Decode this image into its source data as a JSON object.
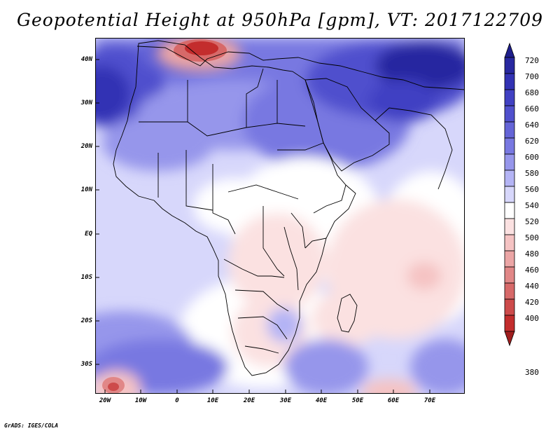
{
  "title": "Geopotential Height at 950hPa [gpm], VT: 2017122709",
  "credit": "GrADS: IGES/COLA",
  "axes": {
    "lat_ticks": [
      "40N",
      "30N",
      "20N",
      "10N",
      "EQ",
      "10S",
      "20S",
      "30S"
    ],
    "lon_ticks": [
      "20W",
      "10W",
      "0",
      "10E",
      "20E",
      "30E",
      "40E",
      "50E",
      "60E",
      "70E"
    ]
  },
  "colorbar": {
    "levels": [
      "720",
      "700",
      "680",
      "660",
      "640",
      "620",
      "600",
      "580",
      "560",
      "540",
      "520",
      "500",
      "480",
      "460",
      "440",
      "420",
      "400",
      "380"
    ],
    "colors": [
      "#1e1e8c",
      "#2828a0",
      "#3232b4",
      "#4141c3",
      "#5050cd",
      "#6464d7",
      "#7878e1",
      "#9696eb",
      "#b4b4f5",
      "#d7d7fb",
      "#ffffff",
      "#fbe1e1",
      "#f5c3c3",
      "#eba5a5",
      "#e18787",
      "#d76969",
      "#cd4b4b",
      "#c32d2d",
      "#a01e1e"
    ]
  }
}
